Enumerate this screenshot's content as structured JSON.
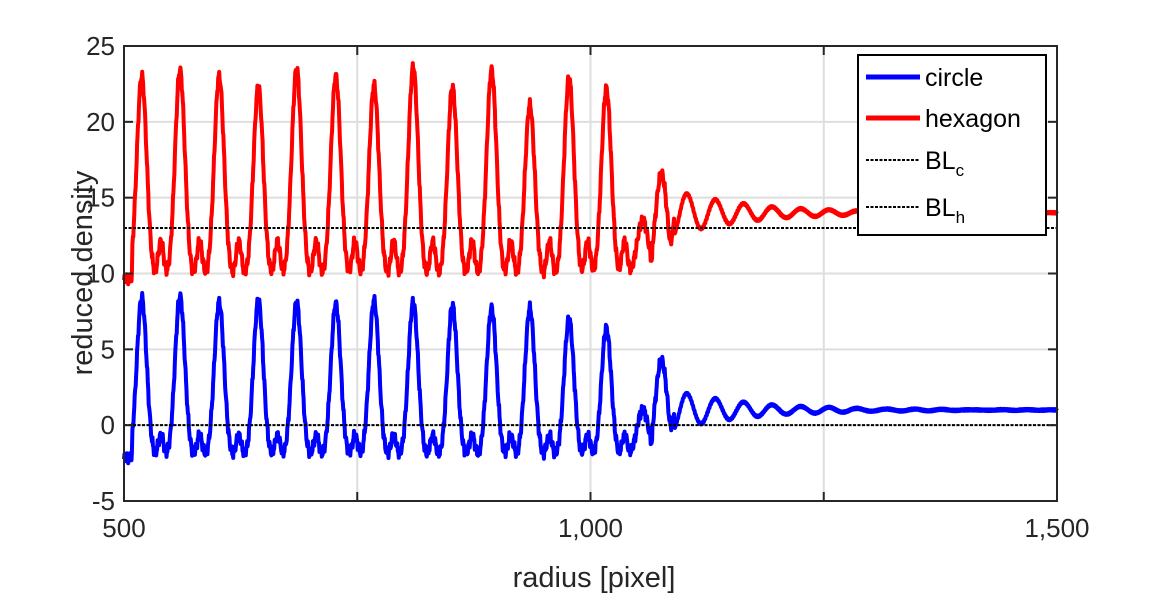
{
  "chart_data": {
    "type": "line",
    "xlabel": "radius [pixel]",
    "ylabel": "reduced density",
    "xlim": [
      500,
      1500
    ],
    "ylim": [
      -5,
      25
    ],
    "x_ticks": [
      500,
      750,
      1000,
      1250,
      1500
    ],
    "x_tick_labels": [
      "500",
      "",
      "1,000",
      "",
      "1,500"
    ],
    "y_ticks": [
      -5,
      0,
      5,
      10,
      15,
      20,
      25
    ],
    "y_tick_labels": [
      "-5",
      "0",
      "5",
      "10",
      "15",
      "20",
      "25"
    ],
    "grid": true,
    "legend_position": "top-right",
    "series": [
      {
        "name": "circle",
        "color": "#0000ff",
        "style": "solid",
        "baseline": 1,
        "low": -2.2,
        "peaks_x": [
          519,
          560,
          602,
          644,
          685,
          727,
          768,
          810,
          852,
          894,
          935,
          977,
          1017,
          1056,
          1076,
          1119,
          1150,
          1180,
          1210,
          1240,
          1270
        ],
        "peaks_y": [
          8.4,
          8.5,
          8.1,
          8.2,
          8.1,
          8.0,
          8.2,
          8.1,
          7.9,
          7.7,
          7.7,
          7.0,
          6.4,
          1.0,
          4.3,
          2.2,
          1.4,
          1.2,
          1.15,
          1.1,
          1.05
        ]
      },
      {
        "name": "hexagon",
        "color": "#ff0000",
        "style": "solid",
        "baseline": 14,
        "low": 9.6,
        "peaks_x": [
          519,
          560,
          602,
          644,
          685,
          727,
          768,
          810,
          852,
          894,
          935,
          977,
          1017,
          1056,
          1076,
          1119,
          1150,
          1180,
          1210,
          1240,
          1270
        ],
        "peaks_y": [
          23.0,
          23.4,
          23.0,
          22.3,
          23.5,
          23.0,
          22.4,
          23.6,
          22.3,
          23.4,
          21.1,
          22.9,
          22.2,
          13.5,
          16.6,
          14.8,
          14.6,
          14.5,
          14.35,
          14.25,
          14.15
        ]
      },
      {
        "name": "BL",
        "subscript": "c",
        "color": "#000000",
        "style": "dashed",
        "constant": 0
      },
      {
        "name": "BL",
        "subscript": "h",
        "color": "#000000",
        "style": "dashed",
        "constant": 13
      }
    ]
  }
}
